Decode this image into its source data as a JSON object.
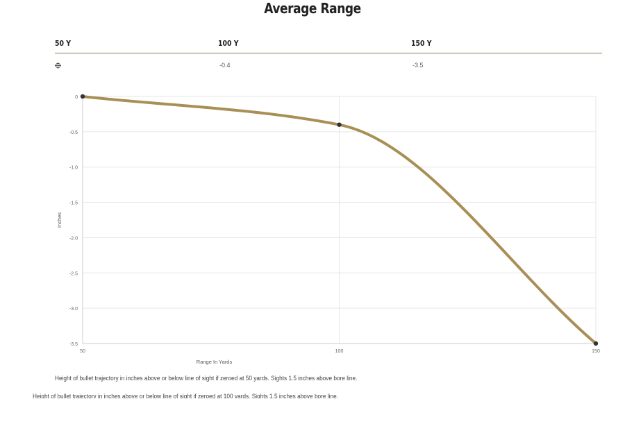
{
  "title": "Average Range",
  "table": {
    "headers": [
      "50 Y",
      "100 Y",
      "150 Y"
    ],
    "row": {
      "icon": "crosshair-icon",
      "values": [
        "",
        "-0.4",
        "-3.5"
      ]
    }
  },
  "chart_data": {
    "type": "line",
    "title": "",
    "xlabel": "Range In Yards",
    "ylabel": "Inches",
    "x": [
      50,
      100,
      150
    ],
    "series": [
      {
        "values": [
          0,
          -0.4,
          -3.5
        ],
        "color": "#a88f55"
      }
    ],
    "xlim": [
      50,
      150
    ],
    "ylim": [
      -3.5,
      0
    ],
    "x_ticks": [
      "50",
      "100",
      "150"
    ],
    "y_ticks": [
      "0",
      "-0.5",
      "-1.0",
      "-1.5",
      "-2.0",
      "-2.5",
      "-3.0",
      "-3.5"
    ],
    "grid": true,
    "point_color": "#333333"
  },
  "notes": [
    "Height of bullet trajectory in inches above or below line of sight if zeroed at 50 yards. Sights 1.5 inches above bore line.",
    "Height of bullet trajectory in inches above or below line of sight if zeroed at 100 yards. Sights 1.5 inches above bore line."
  ]
}
